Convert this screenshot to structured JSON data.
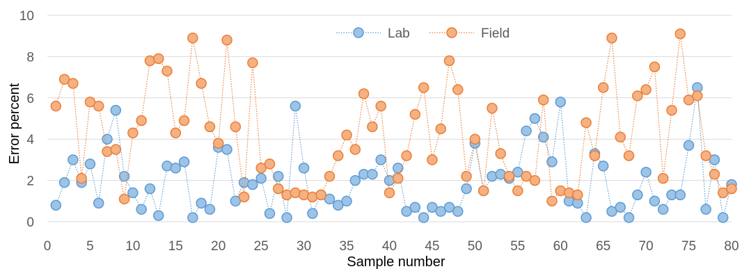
{
  "caption_fragment": "",
  "chart_data": {
    "type": "line",
    "title": "",
    "xlabel": "Sample number",
    "ylabel": "Error percent",
    "xlim": [
      0,
      80
    ],
    "ylim": [
      0,
      10
    ],
    "xticks": [
      0,
      5,
      10,
      15,
      20,
      25,
      30,
      35,
      40,
      45,
      50,
      55,
      60,
      65,
      70,
      75,
      80
    ],
    "yticks": [
      0,
      2,
      4,
      6,
      8,
      10
    ],
    "grid": true,
    "legend_position": "top-center",
    "series": [
      {
        "name": "Lab",
        "color": "#5B9BD5",
        "marker_fill": "#9DC3E6",
        "x": [
          1,
          2,
          3,
          4,
          5,
          6,
          7,
          8,
          9,
          10,
          11,
          12,
          13,
          14,
          15,
          16,
          17,
          18,
          19,
          20,
          21,
          22,
          23,
          24,
          25,
          26,
          27,
          28,
          29,
          30,
          31,
          32,
          33,
          34,
          35,
          36,
          37,
          38,
          39,
          40,
          41,
          42,
          43,
          44,
          45,
          46,
          47,
          48,
          49,
          50,
          51,
          52,
          53,
          54,
          55,
          56,
          57,
          58,
          59,
          60,
          61,
          62,
          63,
          64,
          65,
          66,
          67,
          68,
          69,
          70,
          71,
          72,
          73,
          74,
          75,
          76,
          77,
          78,
          79,
          80
        ],
        "values": [
          0.8,
          1.9,
          3.0,
          1.9,
          2.8,
          0.9,
          4.0,
          5.4,
          2.2,
          1.4,
          0.6,
          1.6,
          0.3,
          2.7,
          2.6,
          2.9,
          0.2,
          0.9,
          0.6,
          3.6,
          3.5,
          1.0,
          1.9,
          1.8,
          2.1,
          0.4,
          2.2,
          0.2,
          5.6,
          2.6,
          0.4,
          1.3,
          1.1,
          0.8,
          1.0,
          2.0,
          2.3,
          2.3,
          3.0,
          2.0,
          2.6,
          0.5,
          0.7,
          0.2,
          0.7,
          0.5,
          0.7,
          0.5,
          1.6,
          3.8,
          1.5,
          2.2,
          2.3,
          2.1,
          2.4,
          4.4,
          5.0,
          4.1,
          2.9,
          5.8,
          1.0,
          0.9,
          0.2,
          3.3,
          2.7,
          0.5,
          0.7,
          0.2,
          1.3,
          2.4,
          1.0,
          0.6,
          1.3,
          1.3,
          3.7,
          6.5,
          0.6,
          3.0,
          0.2,
          1.8
        ]
      },
      {
        "name": "Field",
        "color": "#ED7D31",
        "marker_fill": "#F4B183",
        "x": [
          1,
          2,
          3,
          4,
          5,
          6,
          7,
          8,
          9,
          10,
          11,
          12,
          13,
          14,
          15,
          16,
          17,
          18,
          19,
          20,
          21,
          22,
          23,
          24,
          25,
          26,
          27,
          28,
          29,
          30,
          31,
          32,
          33,
          34,
          35,
          36,
          37,
          38,
          39,
          40,
          41,
          42,
          43,
          44,
          45,
          46,
          47,
          48,
          49,
          50,
          51,
          52,
          53,
          54,
          55,
          56,
          57,
          58,
          59,
          60,
          61,
          62,
          63,
          64,
          65,
          66,
          67,
          68,
          69,
          70,
          71,
          72,
          73,
          74,
          75,
          76,
          77,
          78,
          79,
          80
        ],
        "values": [
          5.6,
          6.9,
          6.7,
          2.1,
          5.8,
          5.6,
          3.4,
          3.5,
          1.1,
          4.3,
          4.9,
          7.8,
          7.9,
          7.3,
          4.3,
          4.9,
          8.9,
          6.7,
          4.6,
          3.8,
          8.8,
          4.6,
          1.2,
          7.7,
          2.6,
          2.8,
          1.6,
          1.3,
          1.4,
          1.3,
          1.2,
          1.3,
          2.2,
          3.2,
          4.2,
          3.5,
          6.2,
          4.6,
          5.6,
          1.4,
          2.1,
          3.2,
          5.2,
          6.5,
          3.0,
          4.5,
          7.8,
          6.4,
          2.2,
          4.0,
          1.5,
          5.5,
          3.3,
          2.2,
          1.5,
          2.2,
          2.0,
          5.9,
          1.0,
          1.5,
          1.4,
          1.3,
          4.8,
          3.2,
          6.5,
          8.9,
          4.1,
          3.2,
          6.1,
          6.4,
          7.5,
          2.1,
          5.4,
          9.1,
          5.9,
          6.1,
          3.2,
          2.3,
          1.4,
          1.6
        ]
      }
    ]
  }
}
